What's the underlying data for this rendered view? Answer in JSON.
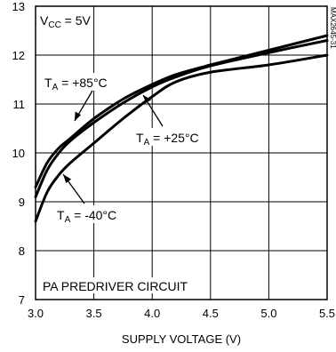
{
  "chart_data": {
    "type": "line",
    "title": "",
    "xlabel": "SUPPLY VOLTAGE (V)",
    "ylabel": "",
    "xlim": [
      3.0,
      5.5
    ],
    "ylim": [
      7,
      13
    ],
    "x_ticks": [
      "3.0",
      "3.5",
      "4.0",
      "4.5",
      "5.0",
      "5.5"
    ],
    "y_ticks": [
      "7",
      "8",
      "9",
      "10",
      "11",
      "12",
      "13"
    ],
    "grid": true,
    "series": [
      {
        "name": "TA = +85°C",
        "x": [
          3.0,
          3.1,
          3.2,
          3.3,
          3.5,
          3.75,
          4.0,
          4.2,
          4.5,
          5.0,
          5.5
        ],
        "y": [
          9.3,
          9.8,
          10.1,
          10.3,
          10.7,
          11.1,
          11.4,
          11.6,
          11.8,
          12.1,
          12.4
        ]
      },
      {
        "name": "TA = +25°C",
        "x": [
          3.0,
          3.1,
          3.2,
          3.3,
          3.5,
          3.75,
          4.0,
          4.2,
          4.5,
          5.0,
          5.5
        ],
        "y": [
          9.1,
          9.65,
          10.0,
          10.25,
          10.62,
          11.02,
          11.35,
          11.55,
          11.78,
          12.05,
          12.3
        ]
      },
      {
        "name": "TA = -40°C",
        "x": [
          3.0,
          3.1,
          3.2,
          3.3,
          3.5,
          3.75,
          4.0,
          4.2,
          4.5,
          5.0,
          5.5
        ],
        "y": [
          8.6,
          9.2,
          9.55,
          9.8,
          10.2,
          10.7,
          11.15,
          11.45,
          11.65,
          11.8,
          12.0
        ]
      }
    ],
    "annotations": {
      "vcc_main": "V",
      "vcc_sub": "CC",
      "vcc_rest": " = 5V",
      "t85_main": "T",
      "t85_sub": "A",
      "t85_rest": " = +85°C",
      "t25_main": "T",
      "t25_sub": "A",
      "t25_rest": " = +25°C",
      "tm40_main": "T",
      "tm40_sub": "A",
      "tm40_rest": " = -40°C",
      "circuit": "PA PREDRIVER CIRCUIT",
      "part_code": "MAX2645-31"
    },
    "colors": {
      "line": "#000000",
      "grid": "#000000",
      "background": "#ffffff"
    }
  }
}
